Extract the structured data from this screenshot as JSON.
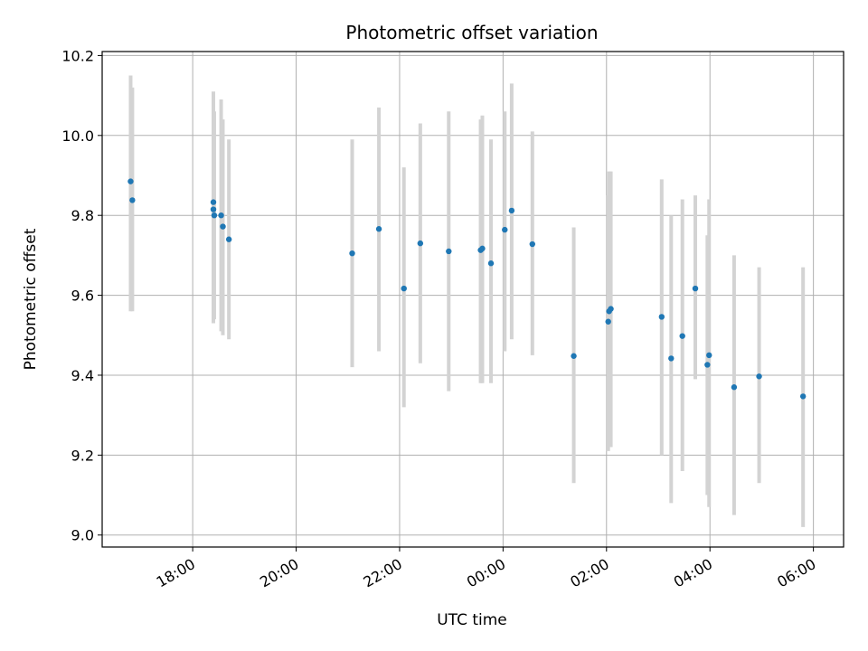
{
  "chart_data": {
    "type": "scatter",
    "title": "Photometric offset variation",
    "xlabel": "UTC time",
    "ylabel": "Photometric offset",
    "grid": true,
    "ylim": [
      8.97,
      10.21
    ],
    "xlim": [
      "16:15",
      "06:35"
    ],
    "y_ticks": [
      "9.0",
      "9.2",
      "9.4",
      "9.6",
      "9.8",
      "10.0",
      "10.2"
    ],
    "x_ticks": [
      "18:00",
      "20:00",
      "22:00",
      "00:00",
      "02:00",
      "04:00",
      "06:00"
    ],
    "point_color": "#1f77b4",
    "errorbar_color": "#d3d3d3",
    "points": [
      {
        "x": "16:48",
        "y": 9.885,
        "ylow": 9.56,
        "yhigh": 10.15
      },
      {
        "x": "16:50",
        "y": 9.838,
        "ylow": 9.56,
        "yhigh": 10.12
      },
      {
        "x": "18:24",
        "y": 9.833,
        "ylow": 9.55,
        "yhigh": 10.11
      },
      {
        "x": "18:24",
        "y": 9.815,
        "ylow": 9.53,
        "yhigh": 10.1
      },
      {
        "x": "18:25",
        "y": 9.8,
        "ylow": 9.54,
        "yhigh": 10.06
      },
      {
        "x": "18:33",
        "y": 9.8,
        "ylow": 9.51,
        "yhigh": 10.09
      },
      {
        "x": "18:35",
        "y": 9.772,
        "ylow": 9.5,
        "yhigh": 10.04
      },
      {
        "x": "18:42",
        "y": 9.74,
        "ylow": 9.49,
        "yhigh": 9.99
      },
      {
        "x": "21:05",
        "y": 9.705,
        "ylow": 9.42,
        "yhigh": 9.99
      },
      {
        "x": "21:36",
        "y": 9.766,
        "ylow": 9.46,
        "yhigh": 10.07
      },
      {
        "x": "22:05",
        "y": 9.617,
        "ylow": 9.32,
        "yhigh": 9.92
      },
      {
        "x": "22:24",
        "y": 9.73,
        "ylow": 9.43,
        "yhigh": 10.03
      },
      {
        "x": "22:57",
        "y": 9.71,
        "ylow": 9.36,
        "yhigh": 10.06
      },
      {
        "x": "23:34",
        "y": 9.713,
        "ylow": 9.38,
        "yhigh": 10.04
      },
      {
        "x": "23:36",
        "y": 9.717,
        "ylow": 9.38,
        "yhigh": 10.05
      },
      {
        "x": "23:46",
        "y": 9.68,
        "ylow": 9.38,
        "yhigh": 9.99
      },
      {
        "x": "00:02",
        "y": 9.764,
        "ylow": 9.46,
        "yhigh": 10.06
      },
      {
        "x": "00:10",
        "y": 9.812,
        "ylow": 9.49,
        "yhigh": 10.13
      },
      {
        "x": "00:34",
        "y": 9.728,
        "ylow": 9.45,
        "yhigh": 10.01
      },
      {
        "x": "01:22",
        "y": 9.448,
        "ylow": 9.13,
        "yhigh": 9.77
      },
      {
        "x": "02:02",
        "y": 9.534,
        "ylow": 9.21,
        "yhigh": 9.85
      },
      {
        "x": "02:03",
        "y": 9.56,
        "ylow": 9.22,
        "yhigh": 9.91
      },
      {
        "x": "02:05",
        "y": 9.566,
        "ylow": 9.22,
        "yhigh": 9.91
      },
      {
        "x": "03:04",
        "y": 9.546,
        "ylow": 9.2,
        "yhigh": 9.89
      },
      {
        "x": "03:15",
        "y": 9.442,
        "ylow": 9.08,
        "yhigh": 9.8
      },
      {
        "x": "03:28",
        "y": 9.498,
        "ylow": 9.16,
        "yhigh": 9.84
      },
      {
        "x": "03:43",
        "y": 9.617,
        "ylow": 9.39,
        "yhigh": 9.85
      },
      {
        "x": "03:57",
        "y": 9.426,
        "ylow": 9.1,
        "yhigh": 9.75
      },
      {
        "x": "03:59",
        "y": 9.45,
        "ylow": 9.07,
        "yhigh": 9.84
      },
      {
        "x": "04:28",
        "y": 9.37,
        "ylow": 9.05,
        "yhigh": 9.7
      },
      {
        "x": "04:57",
        "y": 9.397,
        "ylow": 9.13,
        "yhigh": 9.67
      },
      {
        "x": "05:48",
        "y": 9.347,
        "ylow": 9.02,
        "yhigh": 9.67
      }
    ]
  }
}
